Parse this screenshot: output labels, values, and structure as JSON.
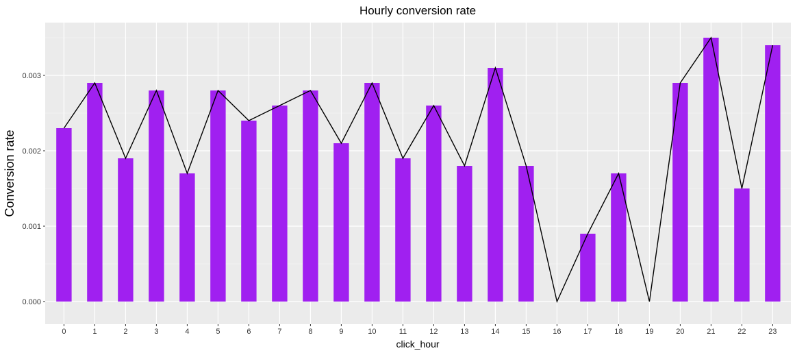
{
  "chart_data": {
    "type": "bar",
    "title": "Hourly conversion rate",
    "xlabel": "click_hour",
    "ylabel": "Conversion rate",
    "categories": [
      "0",
      "1",
      "2",
      "3",
      "4",
      "5",
      "6",
      "7",
      "8",
      "9",
      "10",
      "11",
      "12",
      "13",
      "14",
      "15",
      "16",
      "17",
      "18",
      "19",
      "20",
      "21",
      "22",
      "23"
    ],
    "values": [
      0.0023,
      0.0029,
      0.0019,
      0.0028,
      0.0017,
      0.0028,
      0.0024,
      0.0026,
      0.0028,
      0.0021,
      0.0029,
      0.0019,
      0.0026,
      0.0018,
      0.0031,
      0.0018,
      0.0,
      0.0009,
      0.0017,
      0.0,
      0.0029,
      0.0035,
      0.0015,
      0.0034
    ],
    "overlay_line": true,
    "yticks": [
      "0.000",
      "0.001",
      "0.002",
      "0.003"
    ],
    "ylim": [
      -0.0003,
      0.0037
    ],
    "grid": true,
    "colors": {
      "bar": "#A020F0",
      "line": "#000000",
      "panel_bg": "#EBEBEB",
      "grid_major": "#FFFFFF"
    }
  }
}
